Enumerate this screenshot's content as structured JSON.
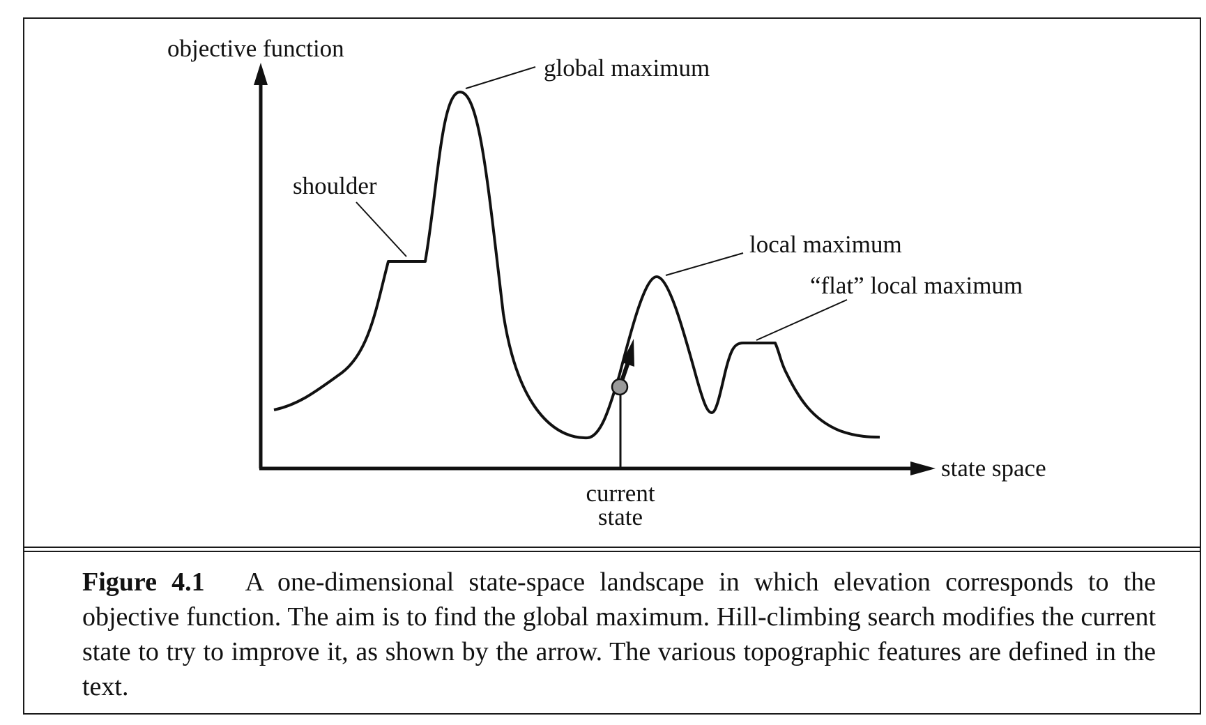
{
  "diagram": {
    "labels": {
      "y_axis": "objective function",
      "x_axis": "state space",
      "global_maximum": "global maximum",
      "shoulder": "shoulder",
      "local_maximum": "local maximum",
      "flat_local_maximum": "“flat” local maximum",
      "current_state_line1": "current",
      "current_state_line2": "state"
    },
    "colors": {
      "ink": "#111111",
      "current_state_marker": "#9a9a9a"
    }
  },
  "caption": {
    "figure_number": "Figure 4.1",
    "text": "A one-dimensional state-space landscape in which elevation corresponds to the objective function. The aim is to find the global maximum. Hill-climbing search modifies the current state to try to improve it, as shown by the arrow. The various topographic features are defined in the text."
  }
}
